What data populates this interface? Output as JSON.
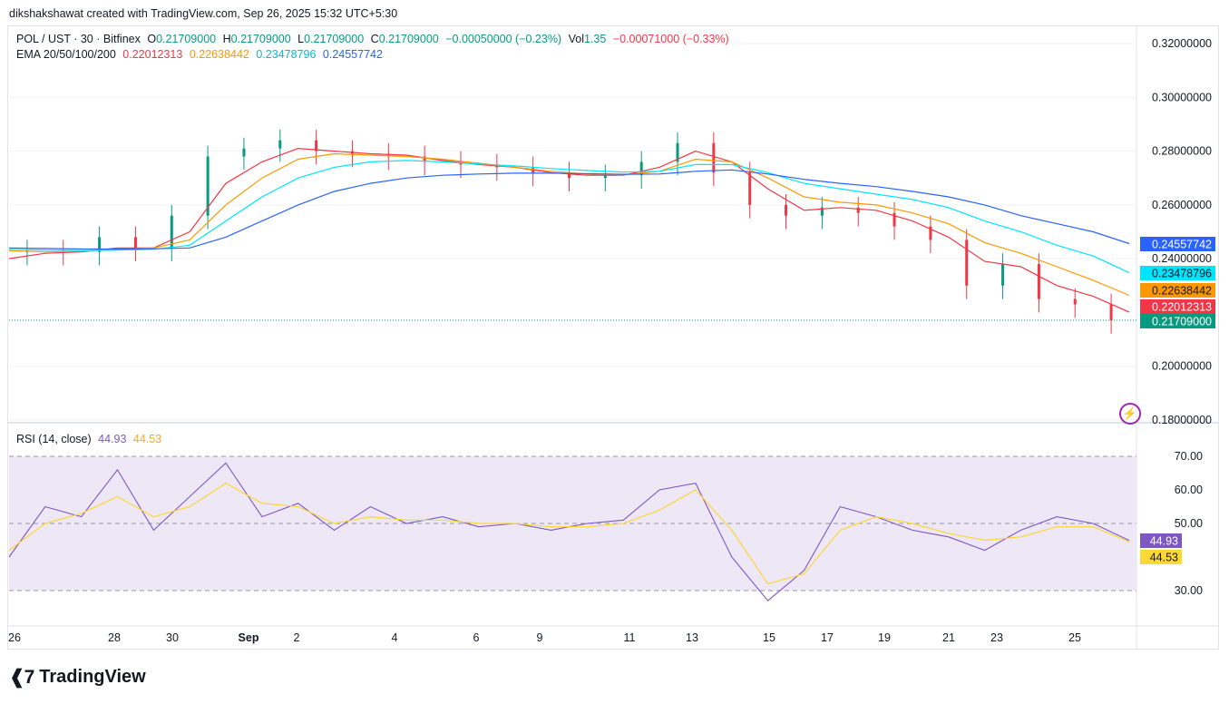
{
  "credit": "dikshakshawat created with TradingView.com, Sep 26, 2025 15:32 UTC+5:30",
  "brand": "TradingView",
  "legend": {
    "symbol": "POL / UST · 30 · Bitfinex",
    "open_label": "O",
    "open": "0.21709000",
    "high_label": "H",
    "high": "0.21709000",
    "low_label": "L",
    "low": "0.21709000",
    "close_label": "C",
    "close": "0.21709000",
    "change": "−0.00050000 (−0.23%)",
    "vol_label": "Vol",
    "vol": "1.35",
    "vol_change": "−0.00071000 (−0.33%)",
    "ema_label": "EMA 20/50/100/200",
    "ema20": "0.22012313",
    "ema50": "0.22638442",
    "ema100": "0.23478796",
    "ema200": "0.24557742",
    "rsi_label": "RSI (14, close)",
    "rsi": "44.93",
    "rsi_ma": "44.53"
  },
  "colors": {
    "up": "#089981",
    "down": "#f23645",
    "ema20": "#f23645",
    "ema50": "#ff9800",
    "ema100": "#00e5ff",
    "ema200": "#2962ff",
    "rsi": "#7e57c2",
    "rsi_ma": "#fdd835",
    "rsi_band": "#ede7f6"
  },
  "chart_data": [
    {
      "type": "line",
      "title": "POL / UST · 30 · Bitfinex",
      "ylim": [
        0.18,
        0.32
      ],
      "y_ticks": [
        "0.32000000",
        "0.30000000",
        "0.28000000",
        "0.26000000",
        "0.24000000",
        "0.20000000",
        "0.18000000"
      ],
      "x_ticks": [
        "26",
        "28",
        "30",
        "Sep",
        "2",
        "4",
        "6",
        "9",
        "11",
        "13",
        "15",
        "17",
        "19",
        "21",
        "23",
        "25"
      ],
      "price_tags": [
        {
          "label": "0.24557742",
          "value": 0.24558,
          "color": "#2962ff"
        },
        {
          "label": "0.23478796",
          "value": 0.23479,
          "color": "#00e5ff"
        },
        {
          "label": "0.22638442",
          "value": 0.22638,
          "color": "#ff9800"
        },
        {
          "label": "0.22012313",
          "value": 0.22012,
          "color": "#f23645"
        },
        {
          "label": "0.21709000",
          "value": 0.21709,
          "color": "#089981"
        }
      ],
      "x": [
        "26",
        "27",
        "28",
        "29",
        "30",
        "31",
        "Sep",
        "2",
        "3",
        "4",
        "5",
        "6",
        "7",
        "8",
        "9",
        "10",
        "11",
        "12",
        "13",
        "14",
        "15",
        "16",
        "17",
        "18",
        "19",
        "20",
        "21",
        "22",
        "23",
        "24",
        "25",
        "26"
      ],
      "series": [
        {
          "name": "POL / UST",
          "values": [
            0.2425,
            0.243,
            0.2425,
            0.248,
            0.244,
            0.256,
            0.278,
            0.281,
            0.284,
            0.28,
            0.279,
            0.278,
            0.276,
            0.275,
            0.274,
            0.272,
            0.27,
            0.271,
            0.276,
            0.283,
            0.272,
            0.26,
            0.256,
            0.259,
            0.257,
            0.252,
            0.247,
            0.23,
            0.238,
            0.225,
            0.223,
            0.2171
          ]
        },
        {
          "name": "EMA 20",
          "values": [
            0.24,
            0.242,
            0.2425,
            0.244,
            0.244,
            0.25,
            0.268,
            0.276,
            0.281,
            0.28,
            0.279,
            0.2785,
            0.2765,
            0.275,
            0.274,
            0.272,
            0.271,
            0.271,
            0.274,
            0.28,
            0.276,
            0.266,
            0.258,
            0.259,
            0.258,
            0.254,
            0.248,
            0.239,
            0.237,
            0.23,
            0.226,
            0.2201
          ]
        },
        {
          "name": "EMA 50",
          "values": [
            0.243,
            0.2425,
            0.2428,
            0.2435,
            0.244,
            0.247,
            0.26,
            0.27,
            0.277,
            0.279,
            0.2785,
            0.278,
            0.277,
            0.2755,
            0.274,
            0.2725,
            0.2715,
            0.2712,
            0.2725,
            0.277,
            0.276,
            0.27,
            0.263,
            0.261,
            0.26,
            0.257,
            0.253,
            0.246,
            0.242,
            0.237,
            0.232,
            0.2264
          ]
        },
        {
          "name": "EMA 100",
          "values": [
            0.2435,
            0.2432,
            0.243,
            0.2432,
            0.2435,
            0.245,
            0.254,
            0.263,
            0.27,
            0.274,
            0.276,
            0.2765,
            0.276,
            0.2752,
            0.2745,
            0.2735,
            0.2728,
            0.2722,
            0.2725,
            0.275,
            0.275,
            0.272,
            0.268,
            0.266,
            0.264,
            0.262,
            0.259,
            0.254,
            0.25,
            0.245,
            0.241,
            0.2348
          ]
        },
        {
          "name": "EMA 200",
          "values": [
            0.244,
            0.2438,
            0.2436,
            0.2436,
            0.2437,
            0.244,
            0.248,
            0.254,
            0.26,
            0.265,
            0.268,
            0.27,
            0.271,
            0.2715,
            0.2718,
            0.2718,
            0.2716,
            0.2714,
            0.2715,
            0.2725,
            0.273,
            0.2715,
            0.2695,
            0.268,
            0.2668,
            0.265,
            0.263,
            0.26,
            0.256,
            0.253,
            0.25,
            0.2456
          ]
        }
      ]
    },
    {
      "type": "line",
      "title": "RSI (14, close)",
      "ylim": [
        20,
        75
      ],
      "y_ticks": [
        "70.00",
        "60.00",
        "50.00",
        "30.00"
      ],
      "bands": [
        30,
        50,
        70
      ],
      "value_tags": [
        {
          "label": "44.93",
          "value": 44.93,
          "color": "#7e57c2"
        },
        {
          "label": "44.53",
          "value": 44.53,
          "color": "#fdd835"
        }
      ],
      "x": [
        "26",
        "27",
        "28",
        "29",
        "30",
        "31",
        "Sep",
        "2",
        "3",
        "4",
        "5",
        "6",
        "7",
        "8",
        "9",
        "10",
        "11",
        "12",
        "13",
        "14",
        "15",
        "16",
        "17",
        "18",
        "19",
        "20",
        "21",
        "22",
        "23",
        "24",
        "25",
        "26"
      ],
      "series": [
        {
          "name": "RSI",
          "values": [
            40,
            55,
            52,
            66,
            48,
            58,
            68,
            52,
            56,
            48,
            55,
            50,
            52,
            49,
            50,
            48,
            50,
            51,
            60,
            62,
            40,
            27,
            36,
            55,
            52,
            48,
            46,
            42,
            48,
            52,
            50,
            44.93
          ]
        },
        {
          "name": "RSI MA",
          "values": [
            42,
            50,
            53,
            58,
            52,
            55,
            62,
            56,
            55,
            50,
            52,
            51,
            51,
            50,
            50,
            49,
            49,
            50,
            54,
            60,
            48,
            32,
            35,
            48,
            52,
            50,
            47,
            45,
            46,
            49,
            49,
            44.53
          ]
        }
      ]
    }
  ]
}
